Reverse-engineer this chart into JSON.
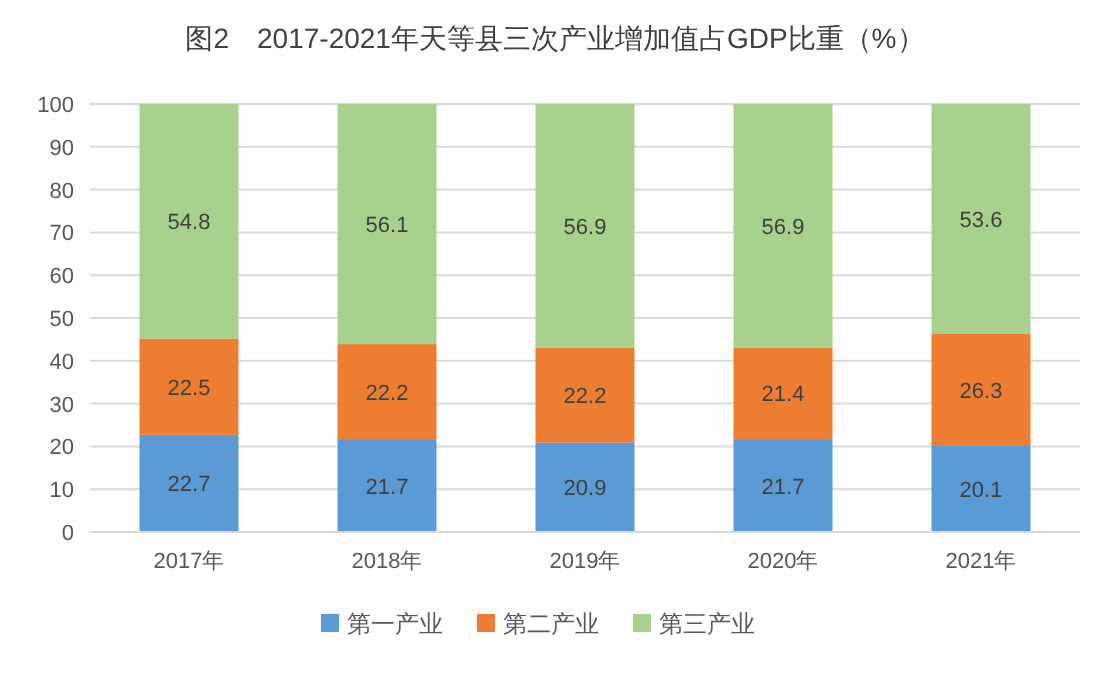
{
  "chart_data": {
    "type": "bar",
    "title": "图2　2017-2021年天等县三次产业增加值占GDP比重（%）",
    "categories": [
      "2017年",
      "2018年",
      "2019年",
      "2020年",
      "2021年"
    ],
    "stacked": true,
    "series": [
      {
        "name": "第一产业",
        "color": "#5b9bd5",
        "values": [
          22.7,
          21.7,
          20.9,
          21.7,
          20.1
        ]
      },
      {
        "name": "第二产业",
        "color": "#ed7d31",
        "values": [
          22.5,
          22.2,
          22.2,
          21.4,
          26.3
        ]
      },
      {
        "name": "第三产业",
        "color": "#a9d18e",
        "values": [
          54.8,
          56.1,
          56.9,
          56.9,
          53.6
        ]
      }
    ],
    "ylim": [
      0,
      100
    ],
    "yticks": [
      0,
      10,
      20,
      30,
      40,
      50,
      60,
      70,
      80,
      90,
      100
    ],
    "grid": "y",
    "data_labels": true,
    "legend": "bottom"
  }
}
